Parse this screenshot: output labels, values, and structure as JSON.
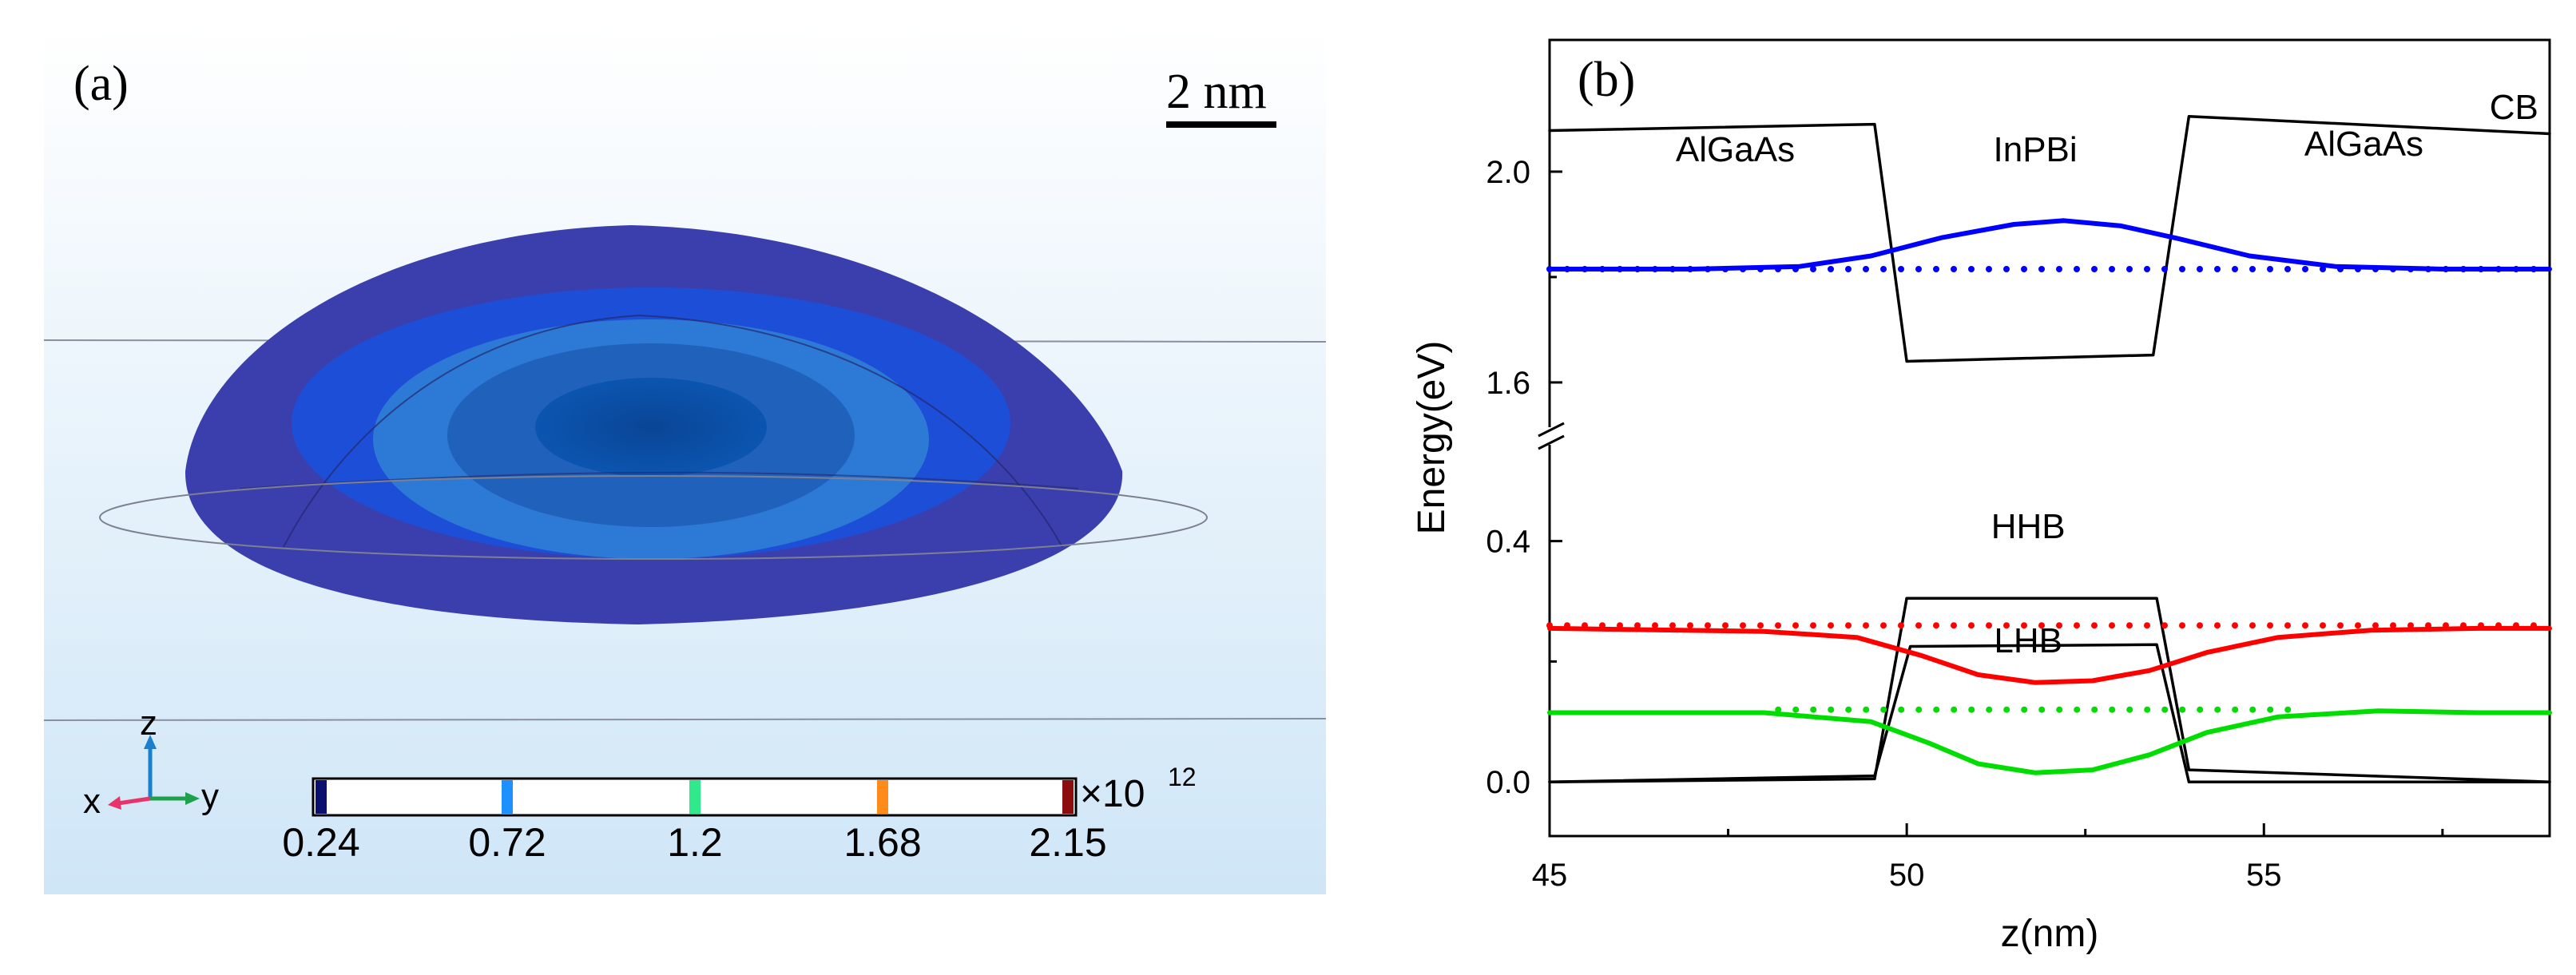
{
  "panel_a": {
    "label": "(a)",
    "scale_bar_label": "2 nm",
    "axis_triad": {
      "x": "x",
      "y": "y",
      "z": "z"
    },
    "colorbar": {
      "ticks": [
        "0.24",
        "0.72",
        "1.2",
        "1.68",
        "2.15"
      ],
      "multiplier": "×10",
      "exponent": "12",
      "tick_colors": [
        "#0b0f6e",
        "#1e90ff",
        "#2fe98a",
        "#ff8c1a",
        "#8b0d0d"
      ]
    },
    "colors": {
      "background_top": "#ffffff",
      "background_bottom": "#cfe6f7",
      "dot_outer": "#3b3fad",
      "dot_mid": "#1d4ed8",
      "dot_inner": "#2f7fd6",
      "dot_core": "#0b4ea2"
    }
  },
  "chart_data": {
    "type": "line",
    "panel_label": "(b)",
    "xlabel": "z(nm)",
    "ylabel": "Energy(eV)",
    "xlim": [
      45,
      59
    ],
    "x_ticks": [
      45,
      50,
      55
    ],
    "y_ticks_upper": [
      "2.0",
      "1.6"
    ],
    "y_ticks_lower": [
      "0.4",
      "0.0"
    ],
    "ylim_upper": [
      1.515,
      2.25
    ],
    "ylim_lower": [
      -0.09,
      0.56
    ],
    "broken_y_axis": true,
    "annotations": [
      {
        "text": "AlGaAs",
        "x": 47.6,
        "y": 2.02,
        "segment": "upper"
      },
      {
        "text": "InPBi",
        "x": 51.8,
        "y": 2.02,
        "segment": "upper"
      },
      {
        "text": "AlGaAs",
        "x": 56.4,
        "y": 2.03,
        "segment": "upper"
      },
      {
        "text": "CB",
        "x": 58.5,
        "y": 2.1,
        "segment": "upper"
      },
      {
        "text": "HHB",
        "x": 51.7,
        "y": 0.405,
        "segment": "lower"
      },
      {
        "text": "LHB",
        "x": 51.7,
        "y": 0.215,
        "segment": "lower"
      }
    ],
    "series": [
      {
        "segment": "upper",
        "color": "#000000",
        "style": "solid",
        "x": [
          45,
          49.55,
          50.0,
          53.45,
          53.95,
          59
        ],
        "y": [
          2.078,
          2.09,
          1.64,
          1.652,
          2.105,
          2.072
        ]
      },
      {
        "segment": "upper",
        "color": "#0000ff",
        "style": "solid",
        "x": [
          45,
          47,
          48.5,
          49.5,
          50.5,
          51.5,
          52.2,
          53,
          53.8,
          54.8,
          56,
          57.5,
          59
        ],
        "y": [
          1.815,
          1.815,
          1.82,
          1.84,
          1.875,
          1.9,
          1.907,
          1.897,
          1.873,
          1.84,
          1.82,
          1.815,
          1.815
        ]
      },
      {
        "segment": "upper",
        "color": "#0000ff",
        "style": "dotted",
        "x": [
          45,
          59
        ],
        "y": [
          1.815,
          1.815
        ]
      },
      {
        "segment": "lower",
        "color": "#000000",
        "style": "solid",
        "x": [
          45,
          49.55,
          50.0,
          53.5,
          53.95,
          59
        ],
        "y": [
          0.0,
          0.005,
          0.305,
          0.305,
          0.02,
          0.0
        ]
      },
      {
        "segment": "lower",
        "color": "#000000",
        "style": "solid",
        "x": [
          45,
          49.55,
          50.05,
          53.5,
          53.95,
          59
        ],
        "y": [
          0.0,
          0.01,
          0.225,
          0.228,
          0.0,
          0.0
        ]
      },
      {
        "segment": "lower",
        "color": "#ff0000",
        "style": "solid",
        "x": [
          45,
          48,
          49.3,
          50.2,
          51,
          51.8,
          52.6,
          53.4,
          54.2,
          55.2,
          56.5,
          58,
          59
        ],
        "y": [
          0.255,
          0.25,
          0.24,
          0.21,
          0.178,
          0.165,
          0.168,
          0.185,
          0.215,
          0.24,
          0.252,
          0.255,
          0.255
        ]
      },
      {
        "segment": "lower",
        "color": "#ff0000",
        "style": "dotted",
        "x": [
          45,
          59
        ],
        "y": [
          0.26,
          0.26
        ]
      },
      {
        "segment": "lower",
        "color": "#00dd00",
        "style": "solid",
        "x": [
          45,
          48,
          49.5,
          50.3,
          51,
          51.8,
          52.6,
          53.4,
          54.2,
          55.2,
          56.6,
          58,
          59
        ],
        "y": [
          0.115,
          0.115,
          0.1,
          0.065,
          0.03,
          0.015,
          0.02,
          0.045,
          0.082,
          0.108,
          0.118,
          0.115,
          0.115
        ]
      },
      {
        "segment": "lower",
        "color": "#00dd00",
        "style": "dotted",
        "x": [
          48.2,
          55.5
        ],
        "y": [
          0.12,
          0.12
        ]
      }
    ]
  }
}
